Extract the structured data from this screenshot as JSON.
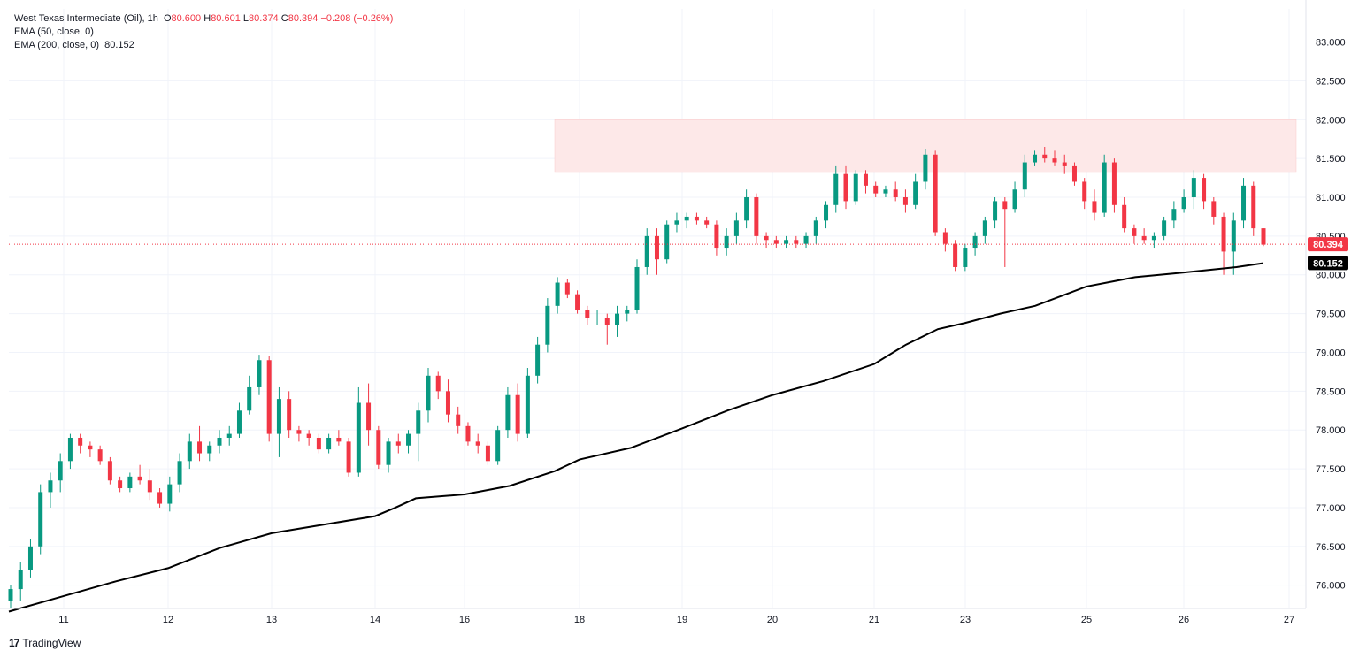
{
  "legend": {
    "symbol": "West Texas Intermediate (Oil), 1h",
    "o_label": "O",
    "o_value": "80.600",
    "h_label": "H",
    "h_value": "80.601",
    "l_label": "L",
    "l_value": "80.374",
    "c_label": "C",
    "c_value": "80.394",
    "change": "−0.208 (−0.26%)",
    "ema50": "EMA (50, close, 0)",
    "ema200": "EMA (200, close, 0)",
    "ema200_value": "80.152"
  },
  "brand": {
    "name": "TradingView"
  },
  "colors": {
    "up": "#089981",
    "down": "#f23645",
    "ema": "#000000",
    "zone": "#fde8e8",
    "grid": "#f0f3fa",
    "text": "#131722"
  },
  "chart_data": {
    "type": "candlestick",
    "y_ticks": [
      "76.000",
      "76.500",
      "77.000",
      "77.500",
      "78.000",
      "78.500",
      "79.000",
      "79.500",
      "80.000",
      "80.500",
      "81.000",
      "81.500",
      "82.000",
      "82.500",
      "83.000"
    ],
    "ylim": [
      75.7,
      83.2
    ],
    "x_labels": [
      "11",
      "12",
      "13",
      "14",
      "16",
      "18",
      "19",
      "20",
      "21",
      "23",
      "25",
      "26",
      "27"
    ],
    "last_price": {
      "label": "80.394",
      "value": 80.394
    },
    "ema200_tag": {
      "label": "80.152",
      "value": 80.152
    },
    "resistance_zone": {
      "low": 81.32,
      "high": 82.0,
      "from_label": "17",
      "to_label": "27"
    },
    "series": [
      {
        "name": "EMA (200, close, 0)",
        "points": [
          [
            "10",
            75.66
          ],
          [
            "11",
            75.86
          ],
          [
            "11.5",
            76.05
          ],
          [
            "12",
            76.22
          ],
          [
            "12.5",
            76.48
          ],
          [
            "13",
            76.67
          ],
          [
            "13.5",
            76.78
          ],
          [
            "14",
            76.89
          ],
          [
            "14.5",
            77.0
          ],
          [
            "15",
            77.12
          ],
          [
            "16",
            77.17
          ],
          [
            "16.5",
            77.28
          ],
          [
            "17",
            77.47
          ],
          [
            "18",
            77.62
          ],
          [
            "18.5",
            77.77
          ],
          [
            "19",
            78.02
          ],
          [
            "19.5",
            78.25
          ],
          [
            "20",
            78.45
          ],
          [
            "20.5",
            78.63
          ],
          [
            "21",
            78.85
          ],
          [
            "21.5",
            79.1
          ],
          [
            "22",
            79.3
          ],
          [
            "23",
            79.38
          ],
          [
            "23.5",
            79.5
          ],
          [
            "24",
            79.6
          ],
          [
            "25",
            79.85
          ],
          [
            "25.5",
            79.97
          ],
          [
            "26",
            80.03
          ],
          [
            "26.5",
            80.1
          ],
          [
            "26.75",
            80.15
          ]
        ]
      }
    ],
    "ohlc": [
      [
        75.8,
        76.0,
        75.7,
        75.95
      ],
      [
        75.95,
        76.3,
        75.8,
        76.2
      ],
      [
        76.2,
        76.6,
        76.1,
        76.5
      ],
      [
        76.5,
        77.3,
        76.4,
        77.2
      ],
      [
        77.2,
        77.45,
        77.0,
        77.35
      ],
      [
        77.35,
        77.7,
        77.2,
        77.6
      ],
      [
        77.6,
        77.95,
        77.5,
        77.9
      ],
      [
        77.9,
        77.95,
        77.7,
        77.8
      ],
      [
        77.8,
        77.85,
        77.65,
        77.75
      ],
      [
        77.75,
        77.8,
        77.55,
        77.6
      ],
      [
        77.6,
        77.65,
        77.3,
        77.35
      ],
      [
        77.35,
        77.4,
        77.2,
        77.25
      ],
      [
        77.25,
        77.45,
        77.2,
        77.4
      ],
      [
        77.4,
        77.55,
        77.3,
        77.35
      ],
      [
        77.35,
        77.5,
        77.1,
        77.2
      ],
      [
        77.2,
        77.25,
        77.0,
        77.05
      ],
      [
        77.05,
        77.4,
        76.95,
        77.3
      ],
      [
        77.3,
        77.7,
        77.2,
        77.6
      ],
      [
        77.6,
        77.95,
        77.5,
        77.85
      ],
      [
        77.85,
        78.05,
        77.6,
        77.7
      ],
      [
        77.7,
        77.85,
        77.6,
        77.8
      ],
      [
        77.8,
        78.0,
        77.7,
        77.9
      ],
      [
        77.9,
        78.05,
        77.8,
        77.95
      ],
      [
        77.95,
        78.35,
        77.9,
        78.25
      ],
      [
        78.25,
        78.7,
        78.2,
        78.55
      ],
      [
        78.55,
        78.97,
        78.45,
        78.9
      ],
      [
        78.9,
        78.95,
        77.85,
        77.95
      ],
      [
        77.95,
        78.55,
        77.65,
        78.4
      ],
      [
        78.4,
        78.5,
        77.9,
        78.0
      ],
      [
        78.0,
        78.05,
        77.85,
        77.95
      ],
      [
        77.95,
        78.0,
        77.8,
        77.9
      ],
      [
        77.9,
        77.95,
        77.7,
        77.75
      ],
      [
        77.75,
        77.95,
        77.7,
        77.9
      ],
      [
        77.9,
        78.0,
        77.8,
        77.85
      ],
      [
        77.85,
        77.9,
        77.4,
        77.45
      ],
      [
        77.45,
        78.55,
        77.4,
        78.35
      ],
      [
        78.35,
        78.6,
        77.8,
        78.0
      ],
      [
        78.0,
        78.05,
        77.5,
        77.55
      ],
      [
        77.55,
        77.9,
        77.45,
        77.85
      ],
      [
        77.85,
        77.95,
        77.7,
        77.8
      ],
      [
        77.8,
        78.0,
        77.7,
        77.95
      ],
      [
        77.95,
        78.35,
        77.6,
        78.25
      ],
      [
        78.25,
        78.8,
        78.1,
        78.7
      ],
      [
        78.7,
        78.75,
        78.4,
        78.5
      ],
      [
        78.5,
        78.65,
        78.1,
        78.2
      ],
      [
        78.2,
        78.3,
        77.95,
        78.05
      ],
      [
        78.05,
        78.1,
        77.8,
        77.85
      ],
      [
        77.85,
        77.95,
        77.7,
        77.8
      ],
      [
        77.8,
        77.85,
        77.55,
        77.6
      ],
      [
        77.6,
        78.05,
        77.55,
        78.0
      ],
      [
        78.0,
        78.55,
        77.9,
        78.45
      ],
      [
        78.45,
        78.6,
        77.85,
        77.95
      ],
      [
        77.95,
        78.8,
        77.9,
        78.7
      ],
      [
        78.7,
        79.2,
        78.6,
        79.1
      ],
      [
        79.1,
        79.7,
        79.0,
        79.6
      ],
      [
        79.6,
        79.97,
        79.5,
        79.9
      ],
      [
        79.9,
        79.95,
        79.7,
        79.75
      ],
      [
        79.75,
        79.8,
        79.5,
        79.55
      ],
      [
        79.55,
        79.6,
        79.35,
        79.45
      ],
      [
        79.45,
        79.55,
        79.35,
        79.45
      ],
      [
        79.45,
        79.5,
        79.1,
        79.35
      ],
      [
        79.35,
        79.6,
        79.2,
        79.5
      ],
      [
        79.5,
        79.6,
        79.4,
        79.55
      ],
      [
        79.55,
        80.2,
        79.5,
        80.1
      ],
      [
        80.1,
        80.6,
        80.0,
        80.5
      ],
      [
        80.5,
        80.6,
        80.0,
        80.2
      ],
      [
        80.2,
        80.7,
        80.15,
        80.65
      ],
      [
        80.65,
        80.8,
        80.55,
        80.7
      ],
      [
        80.7,
        80.8,
        80.6,
        80.75
      ],
      [
        80.75,
        80.8,
        80.65,
        80.7
      ],
      [
        80.7,
        80.75,
        80.6,
        80.65
      ],
      [
        80.65,
        80.7,
        80.25,
        80.35
      ],
      [
        80.35,
        80.6,
        80.25,
        80.5
      ],
      [
        80.5,
        80.8,
        80.4,
        80.7
      ],
      [
        80.7,
        81.1,
        80.6,
        81.0
      ],
      [
        81.0,
        81.05,
        80.4,
        80.5
      ],
      [
        80.5,
        80.55,
        80.35,
        80.45
      ],
      [
        80.45,
        80.5,
        80.35,
        80.4
      ],
      [
        80.4,
        80.5,
        80.35,
        80.45
      ],
      [
        80.45,
        80.5,
        80.35,
        80.4
      ],
      [
        80.4,
        80.55,
        80.35,
        80.5
      ],
      [
        80.5,
        80.75,
        80.4,
        80.7
      ],
      [
        80.7,
        80.95,
        80.6,
        80.9
      ],
      [
        80.9,
        81.4,
        80.8,
        81.3
      ],
      [
        81.3,
        81.4,
        80.85,
        80.95
      ],
      [
        80.95,
        81.35,
        80.9,
        81.3
      ],
      [
        81.3,
        81.35,
        81.05,
        81.15
      ],
      [
        81.15,
        81.2,
        81.0,
        81.05
      ],
      [
        81.05,
        81.15,
        81.0,
        81.1
      ],
      [
        81.1,
        81.2,
        80.95,
        81.0
      ],
      [
        81.0,
        81.1,
        80.8,
        80.9
      ],
      [
        80.9,
        81.3,
        80.85,
        81.2
      ],
      [
        81.2,
        81.62,
        81.1,
        81.55
      ],
      [
        81.55,
        81.6,
        80.5,
        80.55
      ],
      [
        80.55,
        80.6,
        80.3,
        80.4
      ],
      [
        80.4,
        80.45,
        80.05,
        80.1
      ],
      [
        80.1,
        80.4,
        80.05,
        80.35
      ],
      [
        80.35,
        80.55,
        80.25,
        80.5
      ],
      [
        80.5,
        80.75,
        80.4,
        80.7
      ],
      [
        80.7,
        81.0,
        80.6,
        80.95
      ],
      [
        80.95,
        81.0,
        80.1,
        80.85
      ],
      [
        80.85,
        81.2,
        80.8,
        81.1
      ],
      [
        81.1,
        81.55,
        81.0,
        81.45
      ],
      [
        81.45,
        81.6,
        81.4,
        81.55
      ],
      [
        81.55,
        81.65,
        81.45,
        81.5
      ],
      [
        81.5,
        81.6,
        81.4,
        81.45
      ],
      [
        81.45,
        81.55,
        81.3,
        81.4
      ],
      [
        81.4,
        81.45,
        81.15,
        81.2
      ],
      [
        81.2,
        81.25,
        80.85,
        80.95
      ],
      [
        80.95,
        81.1,
        80.7,
        80.8
      ],
      [
        80.8,
        81.55,
        80.75,
        81.45
      ],
      [
        81.45,
        81.5,
        80.8,
        80.9
      ],
      [
        80.9,
        81.0,
        80.55,
        80.6
      ],
      [
        80.6,
        80.65,
        80.4,
        80.5
      ],
      [
        80.5,
        80.6,
        80.4,
        80.45
      ],
      [
        80.45,
        80.55,
        80.35,
        80.5
      ],
      [
        80.5,
        80.75,
        80.45,
        80.7
      ],
      [
        80.7,
        80.95,
        80.6,
        80.85
      ],
      [
        80.85,
        81.1,
        80.8,
        81.0
      ],
      [
        81.0,
        81.35,
        80.85,
        81.25
      ],
      [
        81.25,
        81.3,
        80.85,
        80.95
      ],
      [
        80.95,
        81.0,
        80.65,
        80.75
      ],
      [
        80.75,
        80.8,
        80.0,
        80.3
      ],
      [
        80.3,
        80.8,
        80.0,
        80.7
      ],
      [
        80.7,
        81.25,
        80.6,
        81.15
      ],
      [
        81.15,
        81.2,
        80.5,
        80.6
      ],
      [
        80.6,
        80.6,
        80.37,
        80.39
      ]
    ]
  }
}
